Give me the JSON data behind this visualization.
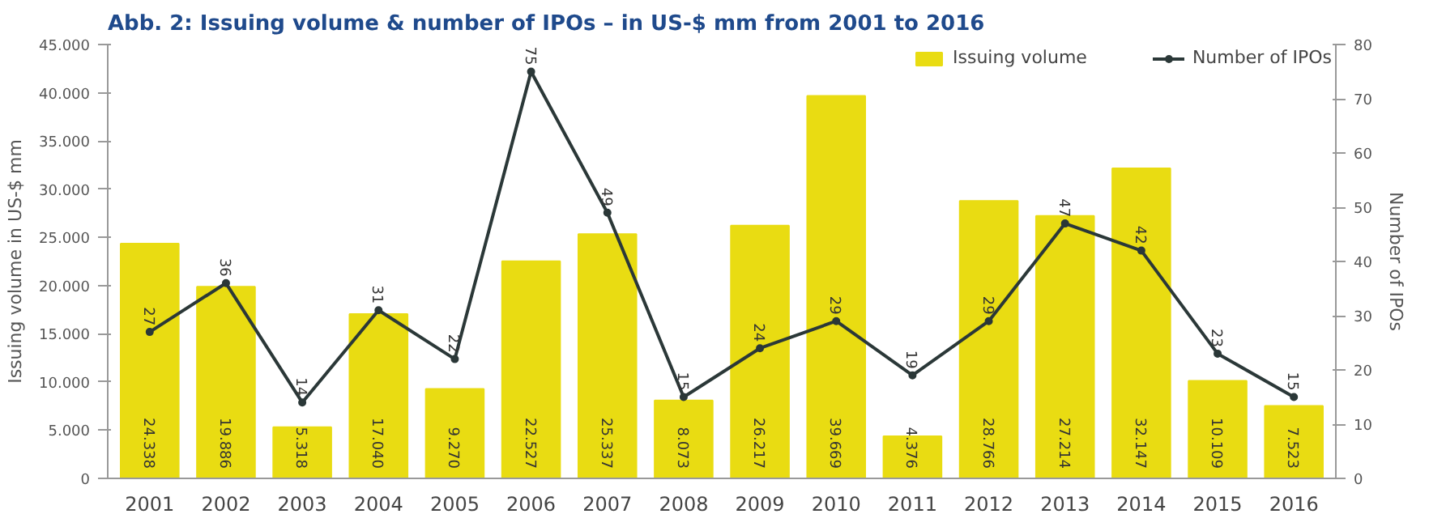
{
  "chart_data": {
    "type": "bar",
    "title": "Abb. 2: Issuing volume & number of IPOs – in US-$ mm from 2001 to 2016",
    "ylabel": "Issuing volume in US-$ mm",
    "y2label": "Number of IPOs",
    "categories": [
      "2001",
      "2002",
      "2003",
      "2004",
      "2005",
      "2006",
      "2007",
      "2008",
      "2009",
      "2010",
      "2011",
      "2012",
      "2013",
      "2014",
      "2015",
      "2016"
    ],
    "series": [
      {
        "name": "Issuing volume",
        "color": "#e9dc12",
        "values": [
          24338,
          19886,
          5318,
          17040,
          9270,
          22527,
          25337,
          8073,
          26217,
          39669,
          4376,
          28766,
          27214,
          32147,
          10109,
          7523
        ],
        "value_labels": [
          "24.338",
          "19.886",
          "5.318",
          "17.040",
          "9.270",
          "22.527",
          "25.337",
          "8.073",
          "26.217",
          "39.669",
          "4.376",
          "28.766",
          "27.214",
          "32.147",
          "10.109",
          "7.523"
        ]
      },
      {
        "name": "Number of IPOs",
        "type": "line",
        "axis": "y2",
        "color": "#2b3838",
        "marker": "circle",
        "values": [
          27,
          36,
          14,
          31,
          22,
          75,
          49,
          15,
          24,
          29,
          19,
          29,
          47,
          42,
          23,
          15
        ],
        "value_labels": [
          "27",
          "36",
          "14",
          "31",
          "22",
          "75",
          "49",
          "15",
          "24",
          "29",
          "19",
          "29",
          "47",
          "42",
          "23",
          "15"
        ]
      }
    ],
    "ylim": [
      0,
      45000
    ],
    "yticks": [
      {
        "value": 0,
        "label": "0"
      },
      {
        "value": 5000,
        "label": "5.000"
      },
      {
        "value": 10000,
        "label": "10.000"
      },
      {
        "value": 15000,
        "label": "15.000"
      },
      {
        "value": 20000,
        "label": "20.000"
      },
      {
        "value": 25000,
        "label": "25.000"
      },
      {
        "value": 30000,
        "label": "30.000"
      },
      {
        "value": 35000,
        "label": "35.000"
      },
      {
        "value": 40000,
        "label": "40.000"
      },
      {
        "value": 45000,
        "label": "45.000"
      }
    ],
    "y2lim": [
      0,
      80
    ],
    "y2ticks": [
      0,
      10,
      20,
      30,
      40,
      50,
      60,
      70,
      80
    ],
    "grid": false,
    "legend": "top right"
  }
}
